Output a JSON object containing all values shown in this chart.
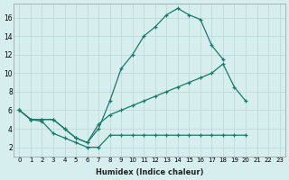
{
  "xlabel": "Humidex (Indice chaleur)",
  "ylabel": "",
  "background_color": "#d6eeed",
  "grid_color": "#b8d8d4",
  "line_color": "#1a7a6a",
  "xlim": [
    -0.5,
    23.5
  ],
  "ylim": [
    1.0,
    17.5
  ],
  "xticks": [
    0,
    1,
    2,
    3,
    4,
    5,
    6,
    7,
    8,
    9,
    10,
    11,
    12,
    13,
    14,
    15,
    16,
    17,
    18,
    19,
    20,
    21,
    22,
    23
  ],
  "yticks": [
    2,
    4,
    6,
    8,
    10,
    12,
    14,
    16
  ],
  "series": [
    {
      "x": [
        0,
        1,
        2,
        3,
        4,
        5,
        6,
        7,
        8,
        9,
        10,
        11,
        12,
        13,
        14,
        15,
        16,
        17,
        18,
        19,
        20,
        21,
        22
      ],
      "y": [
        6,
        5,
        5,
        5,
        4,
        3,
        2.5,
        4,
        7,
        10.5,
        12,
        14,
        15,
        16.3,
        17.0,
        16.3,
        15.8,
        13,
        11.5,
        null,
        null,
        null,
        null
      ]
    },
    {
      "x": [
        0,
        1,
        2,
        3,
        4,
        5,
        6,
        7,
        8,
        9,
        10,
        11,
        12,
        13,
        14,
        15,
        16,
        17,
        18,
        19,
        20,
        21,
        22,
        23
      ],
      "y": [
        6.0,
        5.0,
        5.0,
        5.0,
        4.0,
        3.0,
        2.5,
        4.5,
        5.5,
        6.0,
        6.5,
        7.0,
        7.5,
        8.0,
        8.5,
        9.0,
        9.5,
        10.0,
        11.0,
        8.5,
        7.0,
        null,
        null,
        null
      ]
    },
    {
      "x": [
        0,
        1,
        2,
        3,
        4,
        5,
        6,
        7,
        8,
        9,
        10,
        11,
        12,
        13,
        14,
        15,
        16,
        17,
        18,
        19,
        20,
        21,
        22,
        23
      ],
      "y": [
        6.0,
        5.0,
        4.8,
        3.5,
        3.0,
        2.5,
        2.0,
        2.0,
        3.3,
        3.3,
        3.3,
        3.3,
        3.3,
        3.3,
        3.3,
        3.3,
        3.3,
        3.3,
        3.3,
        3.3,
        3.3,
        null,
        null,
        null
      ]
    }
  ]
}
